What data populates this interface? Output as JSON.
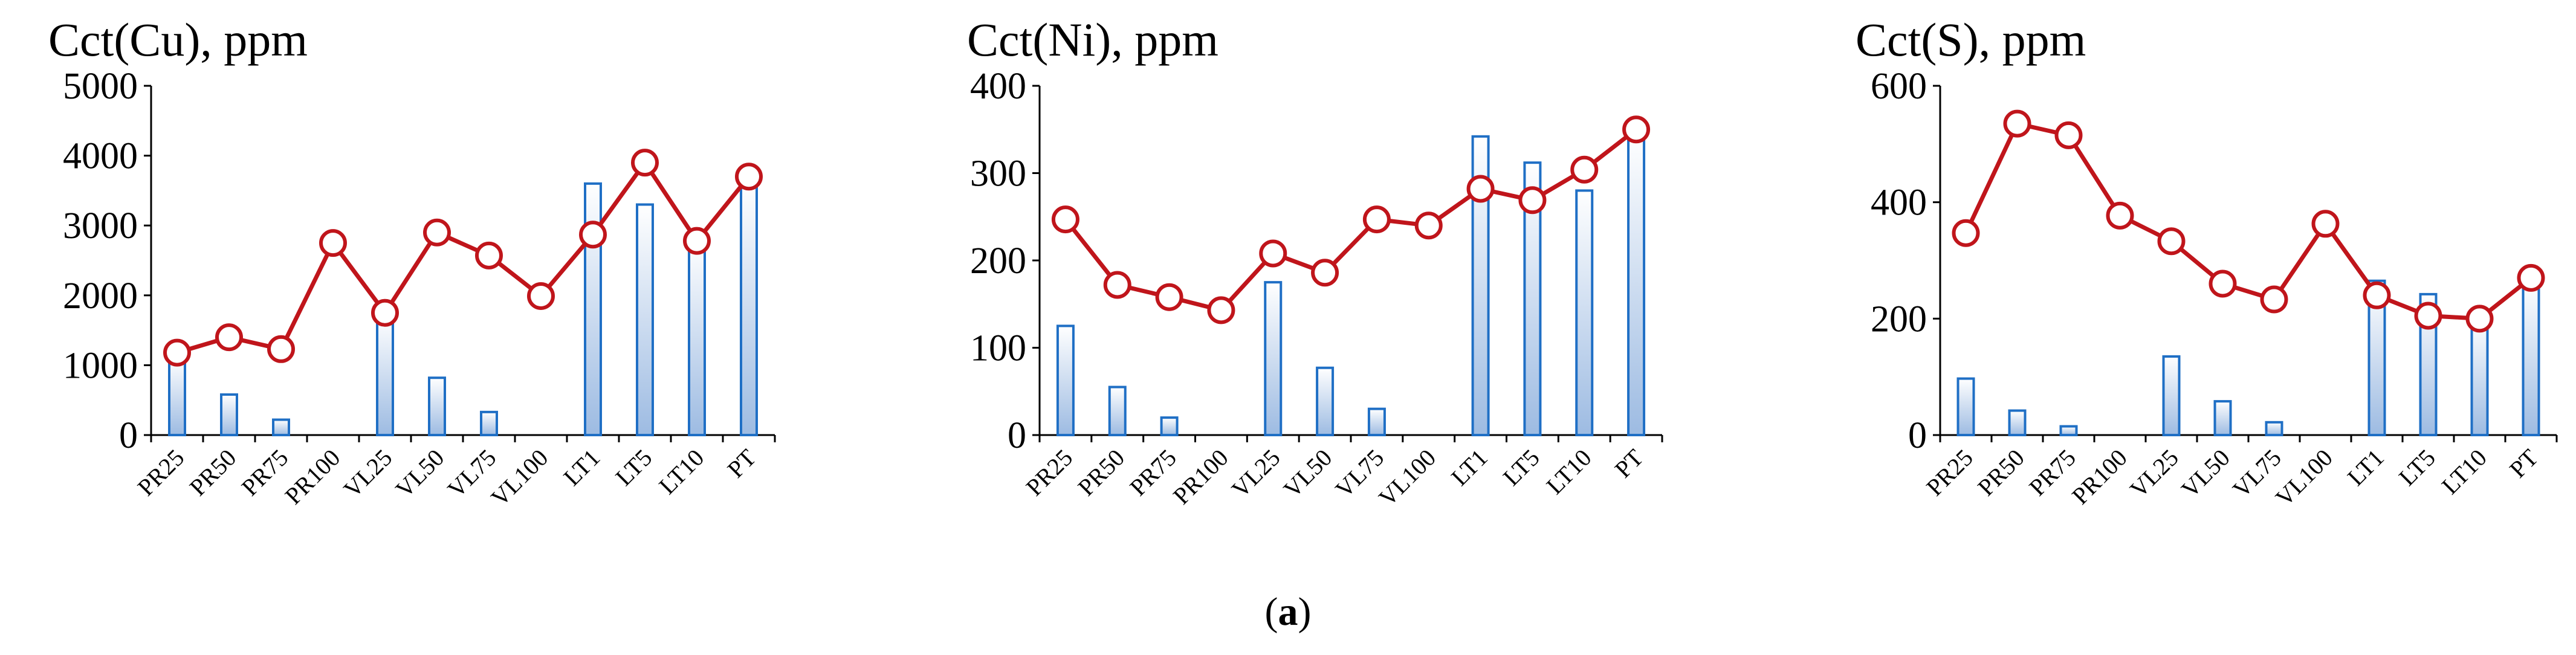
{
  "caption": {
    "open": "(",
    "letter": "a",
    "close": ")"
  },
  "colors": {
    "bar_fill_top": "#ffffff",
    "bar_fill_bottom": "#9dbbe2",
    "bar_stroke": "#1f6fc5",
    "line": "#c0151b",
    "marker_fill": "#ffffff",
    "axis": "#000000"
  },
  "chart_data": [
    {
      "type": "bar+line",
      "title": "Cct(Cu), ppm",
      "categories": [
        "PR25",
        "PR50",
        "PR75",
        "PR100",
        "VL25",
        "VL50",
        "VL75",
        "VL100",
        "LT1",
        "LT5",
        "LT10",
        "PT"
      ],
      "ylim": [
        0,
        5000
      ],
      "yticks": [
        0,
        1000,
        2000,
        3000,
        4000,
        5000
      ],
      "series": [
        {
          "name": "bars",
          "type": "bar",
          "values": [
            1100,
            580,
            220,
            0,
            1700,
            820,
            330,
            0,
            3600,
            3300,
            2800,
            3650
          ]
        },
        {
          "name": "line",
          "type": "line",
          "values": [
            1180,
            1400,
            1230,
            2750,
            1750,
            2900,
            2570,
            1990,
            2870,
            3900,
            2780,
            3700
          ]
        }
      ]
    },
    {
      "type": "bar+line",
      "title": "Cct(Ni), ppm",
      "categories": [
        "PR25",
        "PR50",
        "PR75",
        "PR100",
        "VL25",
        "VL50",
        "VL75",
        "VL100",
        "LT1",
        "LT5",
        "LT10",
        "PT"
      ],
      "ylim": [
        0,
        400
      ],
      "yticks": [
        0,
        100,
        200,
        300,
        400
      ],
      "series": [
        {
          "name": "bars",
          "type": "bar",
          "values": [
            125,
            55,
            20,
            0,
            175,
            77,
            30,
            0,
            342,
            312,
            280,
            345
          ]
        },
        {
          "name": "line",
          "type": "line",
          "values": [
            247,
            172,
            158,
            143,
            208,
            186,
            247,
            240,
            282,
            269,
            304,
            350
          ]
        }
      ]
    },
    {
      "type": "bar+line",
      "title": "Cct(S), ppm",
      "categories": [
        "PR25",
        "PR50",
        "PR75",
        "PR100",
        "VL25",
        "VL50",
        "VL75",
        "VL100",
        "LT1",
        "LT5",
        "LT10",
        "PT"
      ],
      "ylim": [
        0,
        600
      ],
      "yticks": [
        0,
        200,
        400,
        600
      ],
      "series": [
        {
          "name": "bars",
          "type": "bar",
          "values": [
            97,
            42,
            15,
            0,
            135,
            58,
            22,
            0,
            265,
            242,
            200,
            265
          ]
        },
        {
          "name": "line",
          "type": "line",
          "values": [
            347,
            535,
            515,
            377,
            333,
            260,
            233,
            363,
            240,
            205,
            200,
            270
          ]
        }
      ]
    }
  ]
}
